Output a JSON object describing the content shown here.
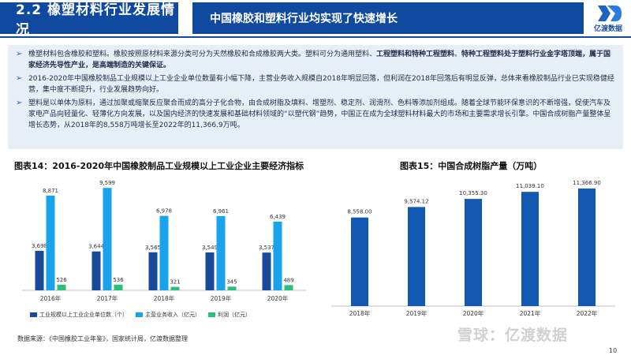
{
  "header": {
    "section": "2.2 橡塑材料行业发展情况",
    "title": "中国橡胶和塑料行业均实现了快速增长",
    "logo_text": "亿渡数据",
    "logo_icon": "yidu-logo-icon"
  },
  "bullets": [
    {
      "parts": [
        {
          "t": "橡塑材料包含橡胶和塑料。橡胶按照原材料来源分类可分为天然橡胶和合成橡胶两大类。塑料可分为通用塑料、",
          "b": false
        },
        {
          "t": "工程塑料和特种工程塑料",
          "b": true
        },
        {
          "t": "。",
          "b": false
        },
        {
          "t": "特种工程塑料处于塑料行业金字塔顶端，属于国家经济先导性产业，是高端制造的关键保证。",
          "b": true
        }
      ]
    },
    {
      "parts": [
        {
          "t": "2016-2020年中国橡胶制品工业规模以上工业企业单位数量有小幅下降，主营业务收入规模自2018年明显回落，但利润在2018年回落后有明显反弹，总体来看橡胶制品行业已实现稳健经营，集中度不断提升，行业发展趋势向好。",
          "b": false
        }
      ]
    },
    {
      "parts": [
        {
          "t": "塑料是以单体为原料，通过加聚或缩聚反应聚合而成的高分子化合物，由合成树脂及填料、增塑剂、稳定剂、润滑剂、色料等添加剂组成。随着全球节能环保意识的不断增强，促使汽车及家电产品向轻量化、轻薄化方向发展，以及国内经济的快速发展和基础材料领域的“以塑代钢”趋势，中国正在成为全球塑料材料最大的市场和主要需求增长引擎。中国合成树脂产量整体呈增长态势，从2018年的8,558万吨增长至2022年的11,366.9万吨。",
          "b": false
        }
      ]
    }
  ],
  "bullet_icon": "triangle-right-icon",
  "chart_data": [
    {
      "type": "bar",
      "title": "图表14：2016-2020年中国橡胶制品工业规模以上工业企业主要经济指标",
      "categories": [
        "2016年",
        "2017年",
        "2018年",
        "2019年",
        "2020年"
      ],
      "series": [
        {
          "name": "工业规模以上工业企业单位数（个）",
          "values": [
            3698,
            3644,
            3565,
            3549,
            3537
          ],
          "labels": [
            "3,698",
            "3,644",
            "3,565",
            "3,549",
            "3,537"
          ],
          "color": "#1a4b9b"
        },
        {
          "name": "主营业务收入（亿元）",
          "values": [
            8871,
            9599,
            6978,
            6961,
            6439
          ],
          "labels": [
            "8,871",
            "9,599",
            "6,978",
            "6,961",
            "6,439"
          ],
          "color": "#1aa3e8"
        },
        {
          "name": "利润（亿元）",
          "values": [
            526,
            536,
            321,
            345,
            489
          ],
          "labels": [
            "526",
            "536",
            "321",
            "345",
            "489"
          ],
          "color": "#2bbf7a"
        }
      ],
      "ylim": [
        0,
        10500
      ],
      "grid": false,
      "legend": "bottom"
    },
    {
      "type": "bar",
      "title": "图表15：中国合成树脂产量（万吨）",
      "categories": [
        "2018年",
        "2019年",
        "2020年",
        "2021年",
        "2022年"
      ],
      "series": [
        {
          "name": "",
          "values": [
            8558.0,
            9574.12,
            10355.3,
            11039.1,
            11366.9
          ],
          "labels": [
            "8,558.00",
            "9,574.12",
            "10,355.30",
            "11,039.10",
            "11,366.90"
          ],
          "color": "#1359b4"
        }
      ],
      "ylim": [
        0,
        12500
      ],
      "grid": false,
      "legend": "none"
    }
  ],
  "footer": {
    "source": "数据来源：《中国橡胶工业年鉴》，国家统计局，亿渡数据整理",
    "watermark": "雪球：亿渡数据",
    "page": "10"
  }
}
